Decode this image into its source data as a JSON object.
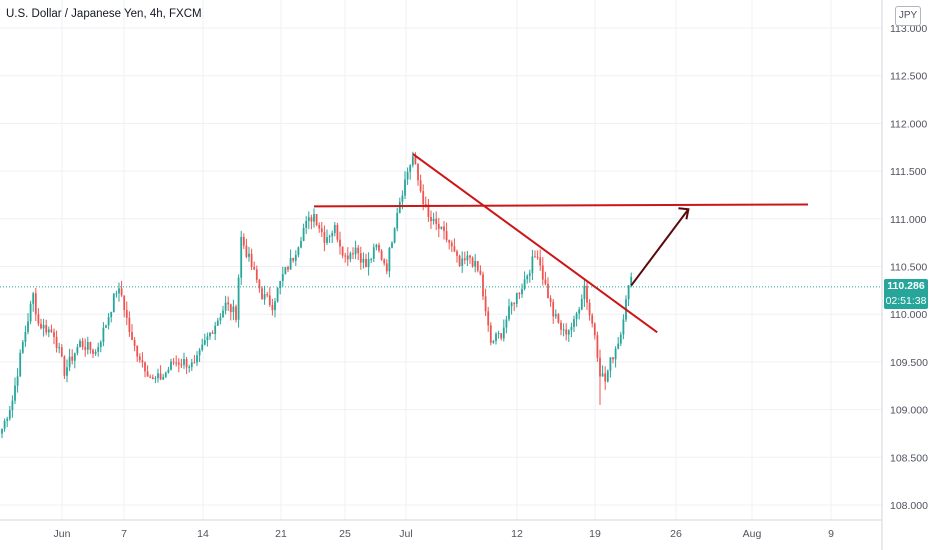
{
  "chart_data": {
    "type": "candlestick",
    "title": "U.S. Dollar / Japanese Yen, 4h, FXCM",
    "currency": "JPY",
    "x_ticks": [
      "Jun",
      "7",
      "14",
      "21",
      "25",
      "Jul",
      "12",
      "19",
      "26",
      "Aug",
      "9"
    ],
    "y_ticks": [
      "108.000",
      "108.500",
      "109.000",
      "109.500",
      "110.000",
      "110.500",
      "111.000",
      "111.500",
      "112.000",
      "112.500",
      "113.000"
    ],
    "ylim": [
      107.9,
      113.2
    ],
    "last_price": "110.286",
    "countdown": "02:51:38",
    "anchors": [
      [
        0,
        108.8
      ],
      [
        4,
        109.1
      ],
      [
        8,
        109.7
      ],
      [
        12,
        110.2
      ],
      [
        14,
        109.9
      ],
      [
        20,
        109.8
      ],
      [
        24,
        109.4
      ],
      [
        30,
        109.7
      ],
      [
        36,
        109.6
      ],
      [
        40,
        109.9
      ],
      [
        44,
        110.25
      ],
      [
        46,
        110.2
      ],
      [
        50,
        109.7
      ],
      [
        54,
        109.5
      ],
      [
        58,
        109.3
      ],
      [
        62,
        109.35
      ],
      [
        66,
        109.5
      ],
      [
        70,
        109.5
      ],
      [
        74,
        109.45
      ],
      [
        78,
        109.7
      ],
      [
        82,
        109.9
      ],
      [
        86,
        110.1
      ],
      [
        90,
        110.0
      ],
      [
        92,
        110.8
      ],
      [
        96,
        110.5
      ],
      [
        100,
        110.2
      ],
      [
        104,
        110.1
      ],
      [
        108,
        110.4
      ],
      [
        112,
        110.6
      ],
      [
        116,
        110.9
      ],
      [
        120,
        111.05
      ],
      [
        124,
        110.8
      ],
      [
        128,
        110.9
      ],
      [
        132,
        110.6
      ],
      [
        136,
        110.7
      ],
      [
        140,
        110.5
      ],
      [
        144,
        110.7
      ],
      [
        148,
        110.5
      ],
      [
        152,
        111.1
      ],
      [
        156,
        111.5
      ],
      [
        158,
        111.65
      ],
      [
        160,
        111.4
      ],
      [
        164,
        111.0
      ],
      [
        168,
        110.9
      ],
      [
        172,
        110.75
      ],
      [
        176,
        110.5
      ],
      [
        180,
        110.6
      ],
      [
        184,
        110.4
      ],
      [
        186,
        110.0
      ],
      [
        188,
        109.7
      ],
      [
        192,
        109.8
      ],
      [
        196,
        110.1
      ],
      [
        200,
        110.3
      ],
      [
        204,
        110.55
      ],
      [
        206,
        110.65
      ],
      [
        208,
        110.4
      ],
      [
        212,
        110.0
      ],
      [
        216,
        109.8
      ],
      [
        220,
        109.9
      ],
      [
        224,
        110.3
      ],
      [
        226,
        110.0
      ],
      [
        228,
        109.8
      ],
      [
        230,
        109.4
      ],
      [
        232,
        109.3
      ],
      [
        234,
        109.5
      ],
      [
        238,
        109.8
      ],
      [
        240,
        110.2
      ],
      [
        242,
        110.35
      ]
    ],
    "annotations": [
      {
        "name": "resistance-line",
        "color": "#cc1616",
        "points": [
          [
            120,
            111.13
          ],
          [
            310,
            111.15
          ]
        ]
      },
      {
        "name": "downtrend-line",
        "color": "#cc1616",
        "points": [
          [
            158,
            111.68
          ],
          [
            252,
            109.81
          ]
        ]
      },
      {
        "name": "projection-arrow",
        "color": "#5a0a0a",
        "points": [
          [
            242,
            110.3
          ],
          [
            264,
            111.1
          ]
        ]
      }
    ],
    "colors": {
      "up": "#26a69a",
      "down": "#ef5350",
      "grid": "#eef0f3",
      "axis_text": "#50535e"
    }
  }
}
